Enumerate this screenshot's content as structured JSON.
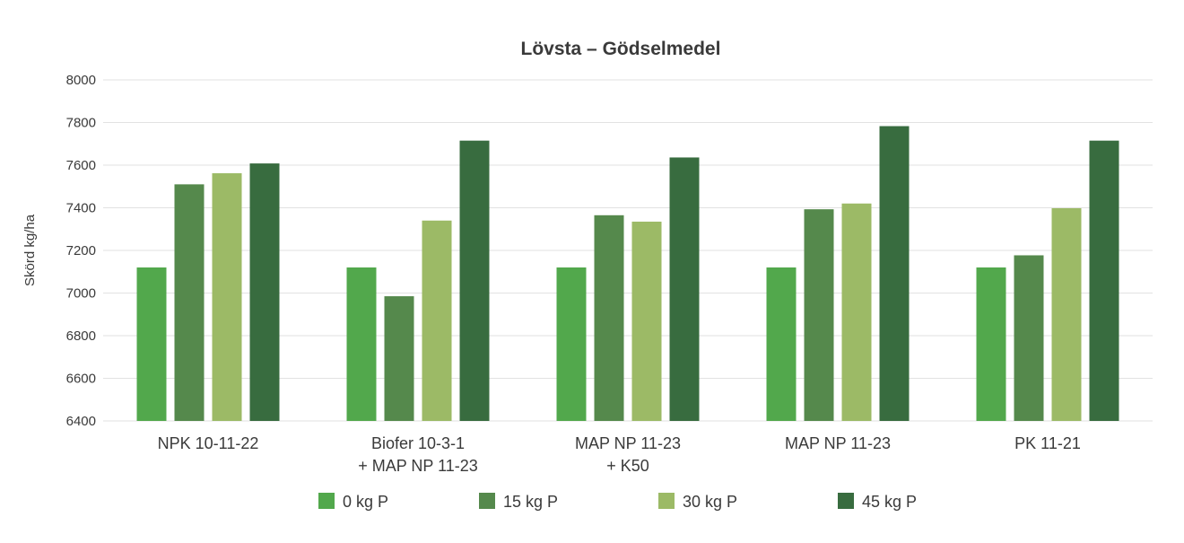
{
  "chart_data": {
    "type": "bar",
    "title": "Lövsta – Gödselmedel",
    "ylabel": "Skörd kg/ha",
    "xlabel": "",
    "ylim": [
      6400,
      8000
    ],
    "yticks": [
      6400,
      6600,
      6800,
      7000,
      7200,
      7400,
      7600,
      7800,
      8000
    ],
    "grid": true,
    "legend_position": "bottom",
    "categories": [
      [
        "NPK 10-11-22"
      ],
      [
        "Biofer 10-3-1",
        "+ MAP NP 11-23"
      ],
      [
        "MAP NP 11-23",
        "+ K50"
      ],
      [
        "MAP NP 11-23"
      ],
      [
        "PK 11-21"
      ]
    ],
    "series": [
      {
        "name": "0 kg P",
        "color": "#52a84c",
        "values": [
          7120,
          7120,
          7120,
          7120,
          7120
        ]
      },
      {
        "name": "15 kg P",
        "color": "#55894c",
        "values": [
          7510,
          6985,
          7365,
          7393,
          7177
        ]
      },
      {
        "name": "30 kg P",
        "color": "#9cba66",
        "values": [
          7562,
          7340,
          7335,
          7420,
          7398
        ]
      },
      {
        "name": "45 kg P",
        "color": "#386c3f",
        "values": [
          7608,
          7715,
          7636,
          7783,
          7715
        ]
      }
    ]
  }
}
